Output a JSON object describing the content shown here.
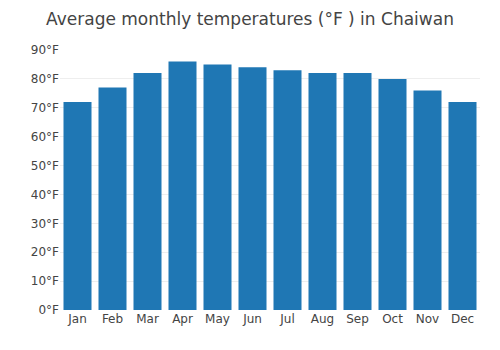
{
  "chart_data": {
    "type": "bar",
    "title": "Average monthly temperatures (°F ) in Chaiwan",
    "categories": [
      "Jan",
      "Feb",
      "Mar",
      "Apr",
      "May",
      "Jun",
      "Jul",
      "Aug",
      "Sep",
      "Oct",
      "Nov",
      "Dec"
    ],
    "values": [
      72,
      77,
      82,
      86,
      85,
      84,
      83,
      82,
      82,
      80,
      76,
      72
    ],
    "ylim": [
      0,
      90
    ],
    "yticks": [
      {
        "value": 0,
        "label": "0°F"
      },
      {
        "value": 10,
        "label": "10°F"
      },
      {
        "value": 20,
        "label": "20°F"
      },
      {
        "value": 30,
        "label": "30°F"
      },
      {
        "value": 40,
        "label": "40°F"
      },
      {
        "value": 50,
        "label": "50°F"
      },
      {
        "value": 60,
        "label": "60°F"
      },
      {
        "value": 70,
        "label": "70°F"
      },
      {
        "value": 80,
        "label": "80°F"
      },
      {
        "value": 90,
        "label": "90°F"
      }
    ],
    "grid": true
  }
}
